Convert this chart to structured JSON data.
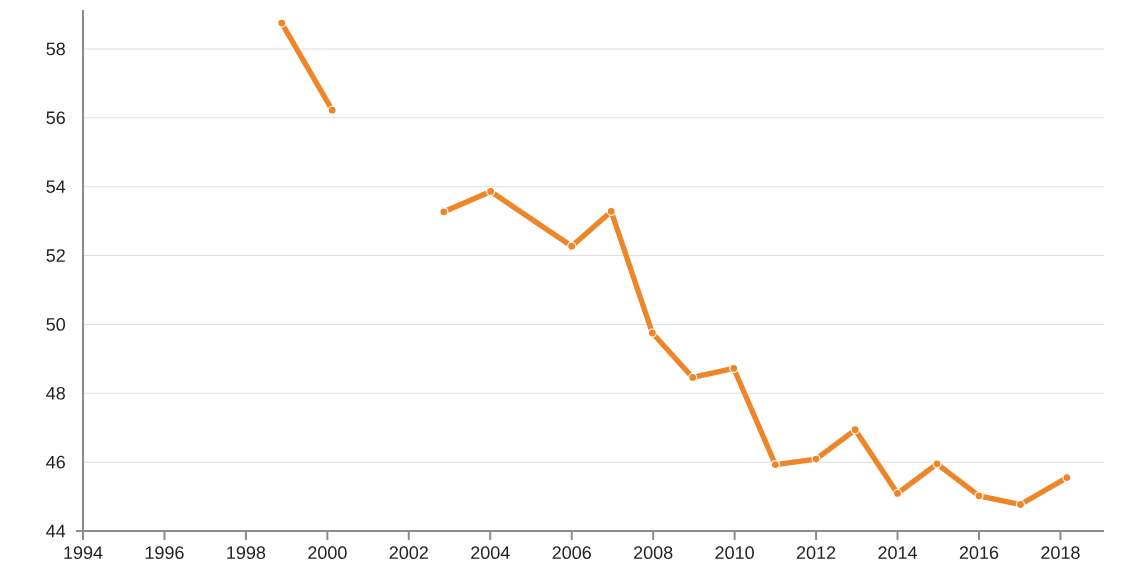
{
  "chart_data": {
    "type": "line",
    "x": [
      1998.88,
      2000.12,
      2001.5,
      2002.86,
      2004.01,
      2006.0,
      2006.97,
      2007.98,
      2008.97,
      2009.98,
      2011.0,
      2012.0,
      2012.96,
      2014.0,
      2014.97,
      2016.0,
      2017.02,
      2018.16
    ],
    "series": [
      {
        "color": "#ee8528",
        "values": [
          58.75,
          56.22,
          null,
          53.27,
          53.86,
          52.27,
          53.28,
          49.75,
          48.46,
          48.72,
          45.93,
          46.09,
          46.94,
          45.09,
          45.95,
          45.02,
          44.77,
          45.55
        ]
      }
    ],
    "xlim": [
      1994,
      2019.07
    ],
    "ylim": [
      44,
      59.13
    ],
    "xticks": [
      1994,
      1996,
      1998,
      2000,
      2002,
      2004,
      2006,
      2008,
      2010,
      2012,
      2014,
      2016,
      2018
    ],
    "yticks": [
      44,
      46,
      48,
      50,
      52,
      54,
      56,
      58
    ],
    "grid": "y",
    "marker": "circle",
    "line_style": "solid"
  }
}
